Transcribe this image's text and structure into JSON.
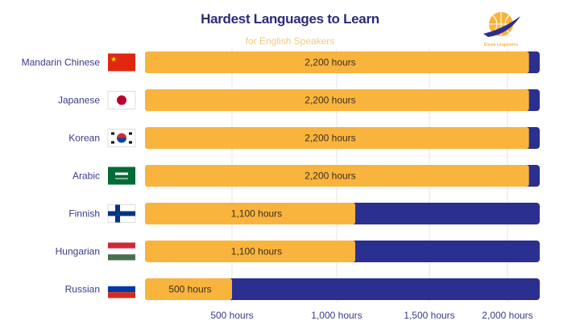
{
  "chart_data": {
    "type": "bar",
    "orientation": "horizontal",
    "title": "Hardest Languages to Learn",
    "subtitle": "for English Speakers",
    "categories": [
      "Mandarin Chinese",
      "Japanese",
      "Korean",
      "Arabic",
      "Finnish",
      "Hungarian",
      "Russian"
    ],
    "values": [
      2200,
      2200,
      2200,
      2200,
      1100,
      1100,
      500
    ],
    "data_labels": [
      "2,200 hours",
      "2,200 hours",
      "2,200 hours",
      "2,200 hours",
      "1,100 hours",
      "1,100 hours",
      "500 hours"
    ],
    "x_ticks": [
      500,
      1000,
      1500,
      2000
    ],
    "x_tick_labels": [
      "500 hours",
      "1,000 hours",
      "1,500 hours",
      "2,000 hours"
    ],
    "flags": [
      "china-flag",
      "japan-flag",
      "south-korea-flag",
      "saudi-arabia-flag",
      "finland-flag",
      "hungary-flag",
      "russia-flag"
    ],
    "grid": true,
    "colors": {
      "value": "#f9b43e",
      "track": "#2b2f8f",
      "title": "#2a2a7a",
      "label": "#3a3a8a",
      "subtitle": "#f6c97a"
    }
  },
  "logo": {
    "text": "Elevis Linguistics"
  }
}
